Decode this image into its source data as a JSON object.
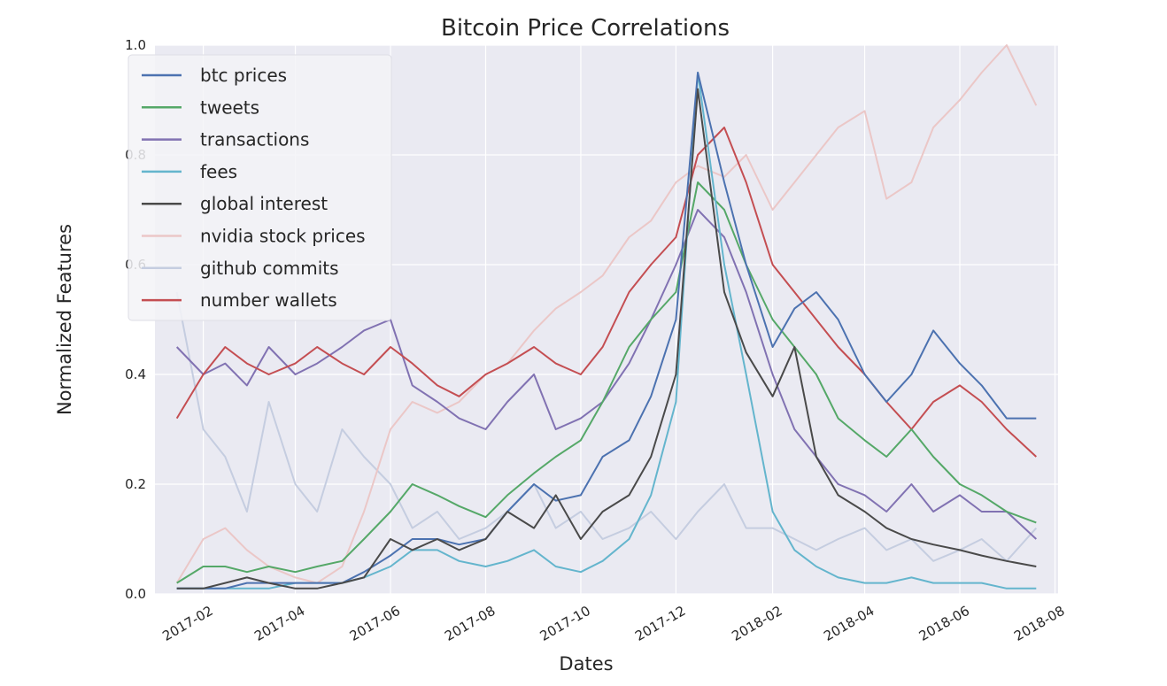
{
  "chart_data": {
    "type": "line",
    "title": "Bitcoin Price Correlations",
    "xlabel": "Dates",
    "ylabel": "Normalized Features",
    "xlim": [
      "2017-01-01",
      "2018-08-03"
    ],
    "ylim": [
      0,
      1.0
    ],
    "x_ticks": [
      "2017-02",
      "2017-04",
      "2017-06",
      "2017-08",
      "2017-10",
      "2017-12",
      "2018-02",
      "2018-04",
      "2018-06",
      "2018-08"
    ],
    "y_ticks": [
      "0.0",
      "0.2",
      "0.4",
      "0.6",
      "0.8",
      "1.0"
    ],
    "grid": true,
    "legend_position": "top-left",
    "colors": {
      "background": "#EAEAF2",
      "grid": "#FFFFFF",
      "btc prices": "#4C72B0",
      "tweets": "#55A868",
      "transactions": "#8172B2",
      "fees": "#64B5CD",
      "global interest": "#4A4A4A",
      "nvidia stock prices": "#EBC7C7",
      "github commits": "#C5CDE0",
      "number wallets": "#C44E52"
    },
    "series": [
      {
        "name": "github commits",
        "x": [
          "2017-01-15",
          "2017-02-01",
          "2017-02-15",
          "2017-03-01",
          "2017-03-15",
          "2017-04-01",
          "2017-04-15",
          "2017-05-01",
          "2017-05-15",
          "2017-06-01",
          "2017-06-15",
          "2017-07-01",
          "2017-07-15",
          "2017-08-01",
          "2017-08-15",
          "2017-09-01",
          "2017-09-15",
          "2017-10-01",
          "2017-10-15",
          "2017-11-01",
          "2017-11-15",
          "2017-12-01",
          "2017-12-15",
          "2018-01-01",
          "2018-01-15",
          "2018-02-01",
          "2018-02-15",
          "2018-03-01",
          "2018-03-15",
          "2018-04-01",
          "2018-04-15",
          "2018-05-01",
          "2018-05-15",
          "2018-06-01",
          "2018-06-15",
          "2018-07-01",
          "2018-07-20"
        ],
        "values": [
          0.55,
          0.3,
          0.25,
          0.15,
          0.35,
          0.2,
          0.15,
          0.3,
          0.25,
          0.2,
          0.12,
          0.15,
          0.1,
          0.12,
          0.15,
          0.2,
          0.12,
          0.15,
          0.1,
          0.12,
          0.15,
          0.1,
          0.15,
          0.2,
          0.12,
          0.12,
          0.1,
          0.08,
          0.1,
          0.12,
          0.08,
          0.1,
          0.06,
          0.08,
          0.1,
          0.06,
          0.12
        ]
      },
      {
        "name": "nvidia stock prices",
        "x": [
          "2017-01-15",
          "2017-02-01",
          "2017-02-15",
          "2017-03-01",
          "2017-03-15",
          "2017-04-01",
          "2017-04-15",
          "2017-05-01",
          "2017-05-15",
          "2017-06-01",
          "2017-06-15",
          "2017-07-01",
          "2017-07-15",
          "2017-08-01",
          "2017-08-15",
          "2017-09-01",
          "2017-09-15",
          "2017-10-01",
          "2017-10-15",
          "2017-11-01",
          "2017-11-15",
          "2017-12-01",
          "2017-12-15",
          "2018-01-01",
          "2018-01-15",
          "2018-02-01",
          "2018-02-15",
          "2018-03-01",
          "2018-03-15",
          "2018-04-01",
          "2018-04-15",
          "2018-05-01",
          "2018-05-15",
          "2018-06-01",
          "2018-06-15",
          "2018-07-01",
          "2018-07-20"
        ],
        "values": [
          0.02,
          0.1,
          0.12,
          0.08,
          0.05,
          0.03,
          0.02,
          0.05,
          0.15,
          0.3,
          0.35,
          0.33,
          0.35,
          0.4,
          0.42,
          0.48,
          0.52,
          0.55,
          0.58,
          0.65,
          0.68,
          0.75,
          0.78,
          0.76,
          0.8,
          0.7,
          0.75,
          0.8,
          0.85,
          0.88,
          0.72,
          0.75,
          0.85,
          0.9,
          0.95,
          1.0,
          0.89
        ]
      },
      {
        "name": "transactions",
        "x": [
          "2017-01-15",
          "2017-02-01",
          "2017-02-15",
          "2017-03-01",
          "2017-03-15",
          "2017-04-01",
          "2017-04-15",
          "2017-05-01",
          "2017-05-15",
          "2017-06-01",
          "2017-06-15",
          "2017-07-01",
          "2017-07-15",
          "2017-08-01",
          "2017-08-15",
          "2017-09-01",
          "2017-09-15",
          "2017-10-01",
          "2017-10-15",
          "2017-11-01",
          "2017-11-15",
          "2017-12-01",
          "2017-12-15",
          "2018-01-01",
          "2018-01-15",
          "2018-02-01",
          "2018-02-15",
          "2018-03-01",
          "2018-03-15",
          "2018-04-01",
          "2018-04-15",
          "2018-05-01",
          "2018-05-15",
          "2018-06-01",
          "2018-06-15",
          "2018-07-01",
          "2018-07-20"
        ],
        "values": [
          0.45,
          0.4,
          0.42,
          0.38,
          0.45,
          0.4,
          0.42,
          0.45,
          0.48,
          0.5,
          0.38,
          0.35,
          0.32,
          0.3,
          0.35,
          0.4,
          0.3,
          0.32,
          0.35,
          0.42,
          0.5,
          0.6,
          0.7,
          0.65,
          0.55,
          0.4,
          0.3,
          0.25,
          0.2,
          0.18,
          0.15,
          0.2,
          0.15,
          0.18,
          0.15,
          0.15,
          0.1
        ]
      },
      {
        "name": "number wallets",
        "x": [
          "2017-01-15",
          "2017-02-01",
          "2017-02-15",
          "2017-03-01",
          "2017-03-15",
          "2017-04-01",
          "2017-04-15",
          "2017-05-01",
          "2017-05-15",
          "2017-06-01",
          "2017-06-15",
          "2017-07-01",
          "2017-07-15",
          "2017-08-01",
          "2017-08-15",
          "2017-09-01",
          "2017-09-15",
          "2017-10-01",
          "2017-10-15",
          "2017-11-01",
          "2017-11-15",
          "2017-12-01",
          "2017-12-15",
          "2018-01-01",
          "2018-01-15",
          "2018-02-01",
          "2018-02-15",
          "2018-03-01",
          "2018-03-15",
          "2018-04-01",
          "2018-04-15",
          "2018-05-01",
          "2018-05-15",
          "2018-06-01",
          "2018-06-15",
          "2018-07-01",
          "2018-07-20"
        ],
        "values": [
          0.32,
          0.4,
          0.45,
          0.42,
          0.4,
          0.42,
          0.45,
          0.42,
          0.4,
          0.45,
          0.42,
          0.38,
          0.36,
          0.4,
          0.42,
          0.45,
          0.42,
          0.4,
          0.45,
          0.55,
          0.6,
          0.65,
          0.8,
          0.85,
          0.75,
          0.6,
          0.55,
          0.5,
          0.45,
          0.4,
          0.35,
          0.3,
          0.35,
          0.38,
          0.35,
          0.3,
          0.25
        ]
      },
      {
        "name": "tweets",
        "x": [
          "2017-01-15",
          "2017-02-01",
          "2017-02-15",
          "2017-03-01",
          "2017-03-15",
          "2017-04-01",
          "2017-04-15",
          "2017-05-01",
          "2017-05-15",
          "2017-06-01",
          "2017-06-15",
          "2017-07-01",
          "2017-07-15",
          "2017-08-01",
          "2017-08-15",
          "2017-09-01",
          "2017-09-15",
          "2017-10-01",
          "2017-10-15",
          "2017-11-01",
          "2017-11-15",
          "2017-12-01",
          "2017-12-15",
          "2018-01-01",
          "2018-01-15",
          "2018-02-01",
          "2018-02-15",
          "2018-03-01",
          "2018-03-15",
          "2018-04-01",
          "2018-04-15",
          "2018-05-01",
          "2018-05-15",
          "2018-06-01",
          "2018-06-15",
          "2018-07-01",
          "2018-07-20"
        ],
        "values": [
          0.02,
          0.05,
          0.05,
          0.04,
          0.05,
          0.04,
          0.05,
          0.06,
          0.1,
          0.15,
          0.2,
          0.18,
          0.16,
          0.14,
          0.18,
          0.22,
          0.25,
          0.28,
          0.35,
          0.45,
          0.5,
          0.55,
          0.75,
          0.7,
          0.6,
          0.5,
          0.45,
          0.4,
          0.32,
          0.28,
          0.25,
          0.3,
          0.25,
          0.2,
          0.18,
          0.15,
          0.13
        ]
      },
      {
        "name": "fees",
        "x": [
          "2017-01-15",
          "2017-02-01",
          "2017-02-15",
          "2017-03-01",
          "2017-03-15",
          "2017-04-01",
          "2017-04-15",
          "2017-05-01",
          "2017-05-15",
          "2017-06-01",
          "2017-06-15",
          "2017-07-01",
          "2017-07-15",
          "2017-08-01",
          "2017-08-15",
          "2017-09-01",
          "2017-09-15",
          "2017-10-01",
          "2017-10-15",
          "2017-11-01",
          "2017-11-15",
          "2017-12-01",
          "2017-12-15",
          "2018-01-01",
          "2018-01-15",
          "2018-02-01",
          "2018-02-15",
          "2018-03-01",
          "2018-03-15",
          "2018-04-01",
          "2018-04-15",
          "2018-05-01",
          "2018-05-15",
          "2018-06-01",
          "2018-06-15",
          "2018-07-01",
          "2018-07-20"
        ],
        "values": [
          0.01,
          0.01,
          0.01,
          0.01,
          0.01,
          0.02,
          0.02,
          0.02,
          0.03,
          0.05,
          0.08,
          0.08,
          0.06,
          0.05,
          0.06,
          0.08,
          0.05,
          0.04,
          0.06,
          0.1,
          0.18,
          0.35,
          0.95,
          0.6,
          0.4,
          0.15,
          0.08,
          0.05,
          0.03,
          0.02,
          0.02,
          0.03,
          0.02,
          0.02,
          0.02,
          0.01,
          0.01
        ]
      },
      {
        "name": "btc prices",
        "x": [
          "2017-01-15",
          "2017-02-01",
          "2017-02-15",
          "2017-03-01",
          "2017-03-15",
          "2017-04-01",
          "2017-04-15",
          "2017-05-01",
          "2017-05-15",
          "2017-06-01",
          "2017-06-15",
          "2017-07-01",
          "2017-07-15",
          "2017-08-01",
          "2017-08-15",
          "2017-09-01",
          "2017-09-15",
          "2017-10-01",
          "2017-10-15",
          "2017-11-01",
          "2017-11-15",
          "2017-12-01",
          "2017-12-15",
          "2018-01-01",
          "2018-01-15",
          "2018-02-01",
          "2018-02-15",
          "2018-03-01",
          "2018-03-15",
          "2018-04-01",
          "2018-04-15",
          "2018-05-01",
          "2018-05-15",
          "2018-06-01",
          "2018-06-15",
          "2018-07-01",
          "2018-07-20"
        ],
        "values": [
          0.01,
          0.01,
          0.01,
          0.02,
          0.02,
          0.02,
          0.02,
          0.02,
          0.04,
          0.07,
          0.1,
          0.1,
          0.09,
          0.1,
          0.15,
          0.2,
          0.17,
          0.18,
          0.25,
          0.28,
          0.36,
          0.5,
          0.95,
          0.75,
          0.6,
          0.45,
          0.52,
          0.55,
          0.5,
          0.4,
          0.35,
          0.4,
          0.48,
          0.42,
          0.38,
          0.32,
          0.32
        ]
      },
      {
        "name": "global interest",
        "x": [
          "2017-01-15",
          "2017-02-01",
          "2017-02-15",
          "2017-03-01",
          "2017-03-15",
          "2017-04-01",
          "2017-04-15",
          "2017-05-01",
          "2017-05-15",
          "2017-06-01",
          "2017-06-15",
          "2017-07-01",
          "2017-07-15",
          "2017-08-01",
          "2017-08-15",
          "2017-09-01",
          "2017-09-15",
          "2017-10-01",
          "2017-10-15",
          "2017-11-01",
          "2017-11-15",
          "2017-12-01",
          "2017-12-15",
          "2018-01-01",
          "2018-01-15",
          "2018-02-01",
          "2018-02-15",
          "2018-03-01",
          "2018-03-15",
          "2018-04-01",
          "2018-04-15",
          "2018-05-01",
          "2018-05-15",
          "2018-06-01",
          "2018-06-15",
          "2018-07-01",
          "2018-07-20"
        ],
        "values": [
          0.01,
          0.01,
          0.02,
          0.03,
          0.02,
          0.01,
          0.01,
          0.02,
          0.03,
          0.1,
          0.08,
          0.1,
          0.08,
          0.1,
          0.15,
          0.12,
          0.18,
          0.1,
          0.15,
          0.18,
          0.25,
          0.4,
          0.92,
          0.55,
          0.44,
          0.36,
          0.45,
          0.25,
          0.18,
          0.15,
          0.12,
          0.1,
          0.09,
          0.08,
          0.07,
          0.06,
          0.05
        ]
      }
    ]
  }
}
